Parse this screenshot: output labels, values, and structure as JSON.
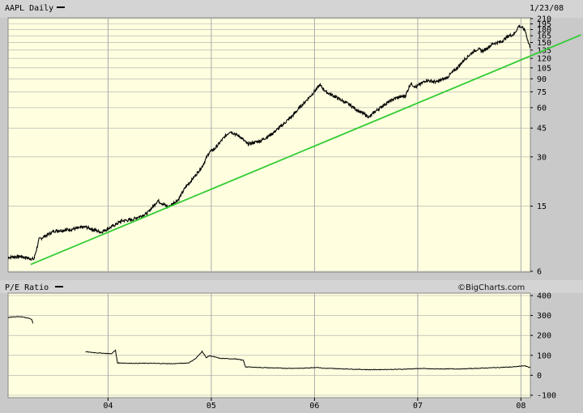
{
  "header": {
    "ticker_label": "AAPL Daily",
    "date": "1/23/08"
  },
  "lower_panel": {
    "label": "P/E Ratio",
    "credit": "©BigCharts.com"
  },
  "colors": {
    "plot_bg": "#ffffe0",
    "frame_bg": "#c9c9c9",
    "grid": "#aaaaaa",
    "price": "#000000",
    "trendline": "#33cc33"
  },
  "chart_data": [
    {
      "type": "line",
      "title": "AAPL Daily",
      "scale": "log",
      "y_ticks": [
        210,
        195,
        180,
        165,
        150,
        135,
        120,
        105,
        90,
        75,
        60,
        45,
        30,
        15,
        6
      ],
      "ylim": [
        6,
        210
      ],
      "x_ticks": [
        "04",
        "05",
        "06",
        "07",
        "08"
      ],
      "xlim": [
        2003.0,
        2008.06
      ],
      "grid": true,
      "series": [
        {
          "x": [
            2003.0,
            2003.12,
            2003.25,
            2003.3,
            2003.45,
            2003.6,
            2003.75,
            2003.9,
            2004.0,
            2004.1,
            2004.2,
            2004.35,
            2004.45,
            2004.55,
            2004.65,
            2004.72,
            2004.8,
            2004.88,
            2004.95,
            2005.0,
            2005.08,
            2005.15,
            2005.25,
            2005.32,
            2005.45,
            2005.55,
            2005.65,
            2005.75,
            2005.85,
            2005.95,
            2006.02,
            2006.08,
            2006.2,
            2006.3,
            2006.4,
            2006.5,
            2006.55,
            2006.65,
            2006.75,
            2006.85,
            2006.9,
            2006.95,
            2007.05,
            2007.15,
            2007.25,
            2007.35,
            2007.42,
            2007.5,
            2007.55,
            2007.6,
            2007.65,
            2007.7,
            2007.78,
            2007.85,
            2007.9,
            2007.95,
            2007.98,
            2008.01,
            2008.04,
            2008.06
          ],
          "values": [
            7.3,
            7.4,
            7.1,
            9.4,
            10.6,
            10.8,
            11.2,
            10.4,
            11.2,
            12.2,
            12.4,
            13.6,
            16.2,
            14.8,
            16.5,
            19.6,
            22.5,
            26.2,
            32.1,
            33.5,
            38.6,
            43.1,
            39.8,
            35.9,
            37.7,
            41.2,
            46.5,
            53.2,
            62.5,
            73.0,
            82.5,
            75.0,
            68.2,
            63.0,
            57.0,
            52.5,
            56.4,
            63.0,
            68.5,
            71.0,
            84.5,
            80.0,
            88.2,
            86.0,
            91.5,
            104.8,
            118.0,
            131.0,
            137.0,
            133.0,
            140.0,
            148.0,
            152.0,
            165.0,
            168.0,
            190.0,
            185.0,
            178.0,
            150.0,
            140.0
          ]
        }
      ],
      "trendline": {
        "x": [
          2003.22,
          2008.55
        ],
        "values": [
          6.6,
          167.0
        ]
      }
    },
    {
      "type": "line",
      "title": "P/E Ratio",
      "y_ticks": [
        400,
        300,
        200,
        100,
        0,
        -100
      ],
      "ylim": [
        -100,
        400
      ],
      "x_ticks": [
        "04",
        "05",
        "06",
        "07",
        "08"
      ],
      "xlim": [
        2003.0,
        2008.06
      ],
      "grid": true,
      "series": [
        {
          "x": [
            2003.0,
            2003.1,
            2003.2,
            2003.23,
            2003.24
          ],
          "values": [
            290,
            295,
            287,
            280,
            260
          ]
        },
        {
          "x": [
            2003.75,
            2003.85,
            2004.0,
            2004.04,
            2004.06,
            2004.2,
            2004.4,
            2004.6,
            2004.75,
            2004.82,
            2004.88,
            2004.92,
            2004.95,
            2004.98,
            2005.05,
            2005.2,
            2005.28,
            2005.3,
            2005.5,
            2005.7,
            2005.85,
            2006.0,
            2006.05,
            2006.2,
            2006.5,
            2006.8,
            2007.0,
            2007.1,
            2007.4,
            2007.7,
            2007.9,
            2008.0,
            2008.06
          ],
          "values": [
            118,
            113,
            108,
            125,
            62,
            60,
            60,
            58,
            62,
            85,
            120,
            88,
            98,
            95,
            85,
            82,
            75,
            42,
            38,
            35,
            35,
            40,
            35,
            33,
            28,
            30,
            34,
            32,
            32,
            38,
            42,
            48,
            38
          ]
        }
      ]
    }
  ]
}
